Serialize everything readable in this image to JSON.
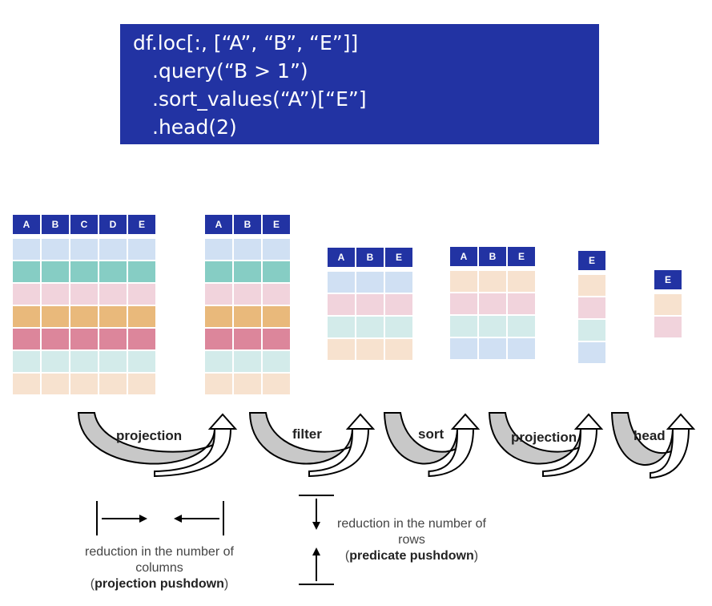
{
  "code": {
    "lines": [
      "df.loc[:, [“A”, “B”, “E”]]",
      ".query(“B > 1”)",
      ".sort_values(“A”)[“E”]",
      ".head(2)"
    ]
  },
  "colors": {
    "header": "#2233a3",
    "light_blue": "#d0e0f3",
    "teal": "#86cdc4",
    "pink": "#f1d3dc",
    "orange": "#e9b97b",
    "rose": "#dc869b",
    "mint": "#d3ebea",
    "peach": "#f7e2cf"
  },
  "tables": [
    {
      "columns": [
        "A",
        "B",
        "C",
        "D",
        "E"
      ],
      "rows": [
        "light_blue",
        "teal",
        "pink",
        "orange",
        "rose",
        "mint",
        "peach"
      ]
    },
    {
      "columns": [
        "A",
        "B",
        "E"
      ],
      "rows": [
        "light_blue",
        "teal",
        "pink",
        "orange",
        "rose",
        "mint",
        "peach"
      ]
    },
    {
      "columns": [
        "A",
        "B",
        "E"
      ],
      "rows": [
        "light_blue",
        "pink",
        "mint",
        "peach"
      ]
    },
    {
      "columns": [
        "A",
        "B",
        "E"
      ],
      "rows": [
        "peach",
        "pink",
        "mint",
        "light_blue"
      ]
    },
    {
      "columns": [
        "E"
      ],
      "rows": [
        "peach",
        "pink",
        "mint",
        "light_blue"
      ]
    },
    {
      "columns": [
        "E"
      ],
      "rows": [
        "peach",
        "pink"
      ]
    }
  ],
  "steps": [
    "projection",
    "filter",
    "sort",
    "projection",
    "head"
  ],
  "captions": {
    "columns": {
      "text": "reduction in the number of columns",
      "open": "(",
      "bold": "projection pushdown",
      "close": ")"
    },
    "rows": {
      "text": "reduction in the number of rows",
      "open": "(",
      "bold": "predicate pushdown",
      "close": ")"
    }
  }
}
